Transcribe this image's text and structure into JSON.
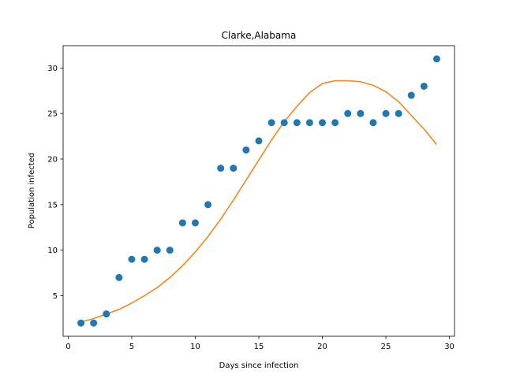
{
  "chart_data": {
    "type": "scatter",
    "title": "Clarke,Alabama",
    "xlabel": "Days since infection",
    "ylabel": "Population infected",
    "xlim": [
      -0.4,
      30.4
    ],
    "ylim": [
      0.55,
      32.45
    ],
    "xticks": [
      0,
      5,
      10,
      15,
      20,
      25,
      30
    ],
    "yticks": [
      5,
      10,
      15,
      20,
      25,
      30
    ],
    "grid": false,
    "series": [
      {
        "kind": "scatter",
        "color": "#1f77b4",
        "x": [
          1,
          2,
          3,
          4,
          5,
          6,
          7,
          8,
          9,
          10,
          11,
          12,
          13,
          14,
          15,
          16,
          17,
          18,
          19,
          20,
          21,
          22,
          23,
          24,
          25,
          26,
          27,
          28,
          29
        ],
        "y": [
          2,
          2,
          3,
          7,
          9,
          9,
          10,
          10,
          13,
          13,
          15,
          19,
          19,
          21,
          22,
          24,
          24,
          24,
          24,
          24,
          24,
          25,
          25,
          24,
          25,
          25,
          27,
          28,
          31
        ]
      },
      {
        "kind": "line",
        "color": "#ff7f0e",
        "x": [
          1,
          2,
          3,
          4,
          5,
          6,
          7,
          8,
          9,
          10,
          11,
          12,
          13,
          14,
          15,
          16,
          17,
          18,
          19,
          20,
          21,
          22,
          23,
          24,
          25,
          26,
          27,
          28,
          29
        ],
        "y": [
          2.1,
          2.5,
          3.0,
          3.5,
          4.2,
          5.0,
          5.9,
          7.0,
          8.3,
          9.8,
          11.5,
          13.4,
          15.5,
          17.7,
          19.9,
          22.1,
          24.1,
          25.8,
          27.3,
          28.3,
          28.6,
          28.6,
          28.5,
          28.1,
          27.4,
          26.3,
          24.8,
          23.3,
          21.6
        ]
      }
    ]
  }
}
